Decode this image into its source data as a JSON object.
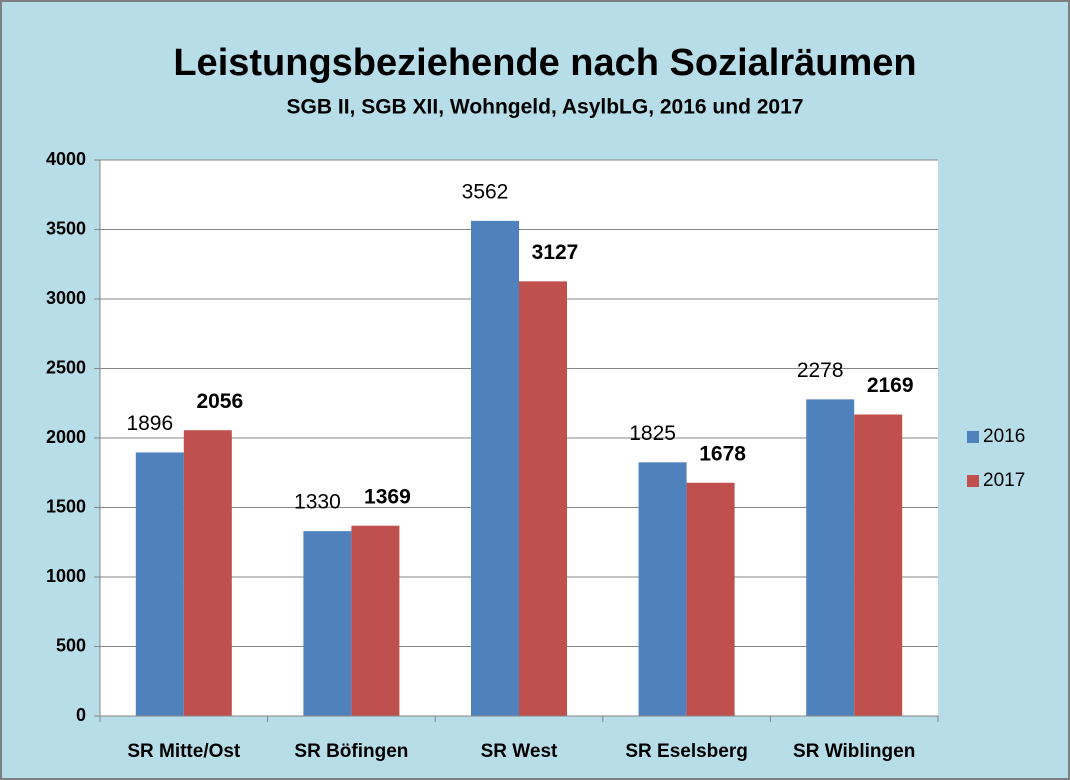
{
  "chart_data": {
    "type": "bar",
    "title": "Leistungsbeziehende nach Sozialräumen",
    "subtitle": "SGB II, SGB XII, Wohngeld, AsylbLG, 2016 und 2017",
    "categories": [
      "SR Mitte/Ost",
      "SR Böfingen",
      "SR West",
      "SR Eselsberg",
      "SR Wiblingen"
    ],
    "series": [
      {
        "name": "2016",
        "color": "#4f81bd",
        "values": [
          1896,
          1330,
          3562,
          1825,
          2278
        ]
      },
      {
        "name": "2017",
        "color": "#c0504d",
        "values": [
          2056,
          1369,
          3127,
          1678,
          2169
        ]
      }
    ],
    "ylim": [
      0,
      4000
    ],
    "yticks": [
      0,
      500,
      1000,
      1500,
      2000,
      2500,
      3000,
      3500,
      4000
    ],
    "grid": true,
    "legend": "right"
  }
}
